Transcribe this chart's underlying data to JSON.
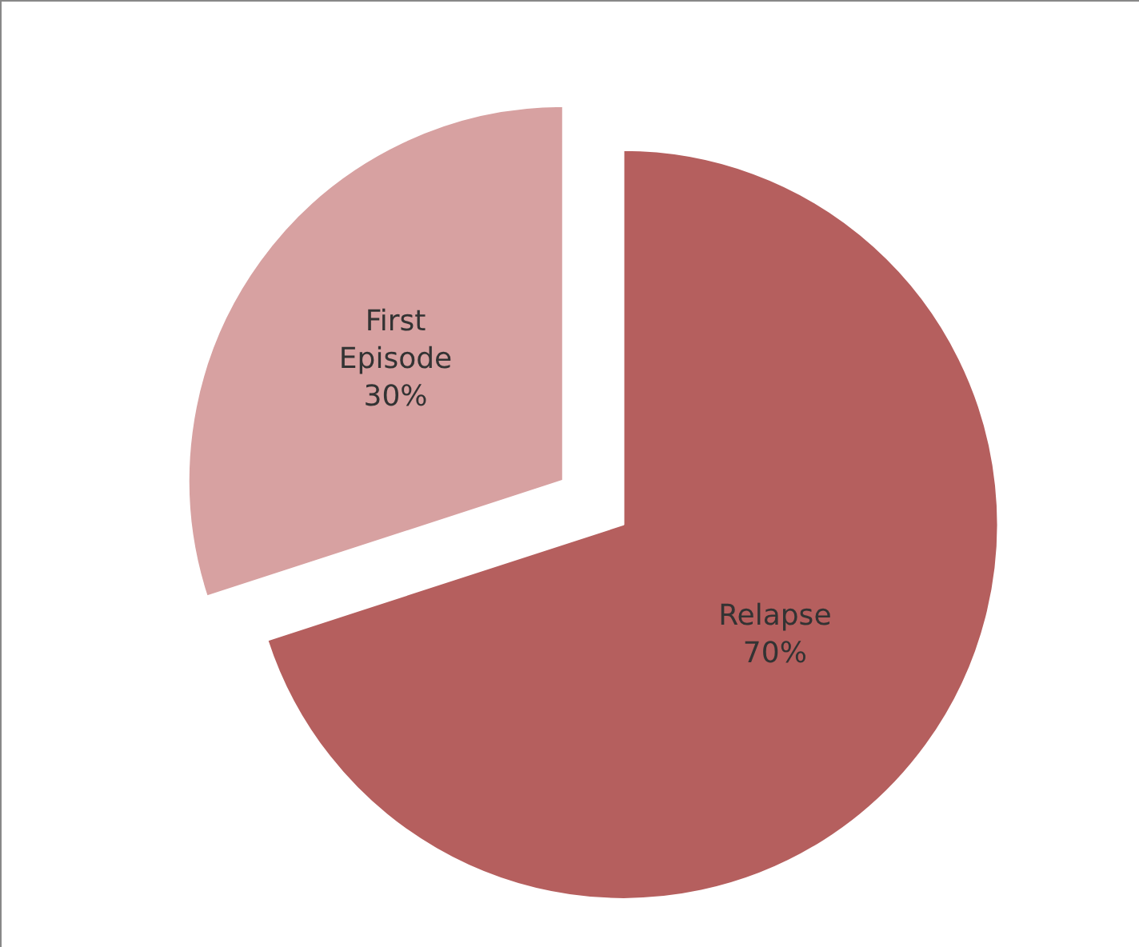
{
  "chart_data": {
    "type": "pie",
    "categories": [
      "Relapse",
      "First Episode"
    ],
    "values": [
      70,
      30
    ],
    "value_labels": [
      "70%",
      "30%"
    ],
    "colors": [
      "#b55f5e",
      "#d7a1a1"
    ],
    "legend": false
  }
}
